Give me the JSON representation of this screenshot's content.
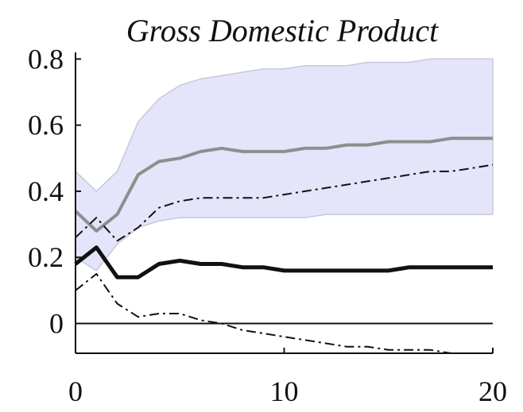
{
  "chart_data": {
    "type": "line",
    "title": "Gross Domestic Product",
    "xlabel": "",
    "ylabel": "",
    "xlim": [
      0,
      20
    ],
    "ylim": [
      -0.09,
      0.82
    ],
    "x_ticks": [
      0,
      10,
      20
    ],
    "x_tick_labels": [
      "0",
      "10",
      "20"
    ],
    "y_ticks": [
      0,
      0.2,
      0.4,
      0.6,
      0.8
    ],
    "y_tick_labels": [
      "0",
      "0.2",
      "0.4",
      "0.6",
      "0.8"
    ],
    "grid": false,
    "legend": "none",
    "x": [
      0,
      1,
      2,
      3,
      4,
      5,
      6,
      7,
      8,
      9,
      10,
      11,
      12,
      13,
      14,
      15,
      16,
      17,
      18,
      19,
      20
    ],
    "band": {
      "color": "#e4e4fa",
      "edge_color": "#c8c8dc",
      "lower": [
        0.2,
        0.16,
        0.24,
        0.29,
        0.31,
        0.32,
        0.32,
        0.32,
        0.32,
        0.32,
        0.32,
        0.32,
        0.33,
        0.33,
        0.33,
        0.33,
        0.33,
        0.33,
        0.33,
        0.33,
        0.33
      ],
      "upper": [
        0.46,
        0.4,
        0.46,
        0.61,
        0.68,
        0.72,
        0.74,
        0.75,
        0.76,
        0.77,
        0.77,
        0.78,
        0.78,
        0.78,
        0.79,
        0.79,
        0.79,
        0.8,
        0.8,
        0.8,
        0.8
      ]
    },
    "series": [
      {
        "style": "solid",
        "color": "#8e8e8e",
        "values": [
          0.34,
          0.28,
          0.33,
          0.45,
          0.49,
          0.5,
          0.52,
          0.53,
          0.52,
          0.52,
          0.52,
          0.53,
          0.53,
          0.54,
          0.54,
          0.55,
          0.55,
          0.55,
          0.56,
          0.56,
          0.56
        ]
      },
      {
        "style": "dashdot",
        "color": "#111111",
        "values": [
          0.26,
          0.32,
          0.25,
          0.29,
          0.35,
          0.37,
          0.38,
          0.38,
          0.38,
          0.38,
          0.39,
          0.4,
          0.41,
          0.42,
          0.43,
          0.44,
          0.45,
          0.46,
          0.46,
          0.47,
          0.48
        ]
      },
      {
        "style": "solid-thick",
        "color": "#111111",
        "values": [
          0.18,
          0.23,
          0.14,
          0.14,
          0.18,
          0.19,
          0.18,
          0.18,
          0.17,
          0.17,
          0.16,
          0.16,
          0.16,
          0.16,
          0.16,
          0.16,
          0.17,
          0.17,
          0.17,
          0.17,
          0.17
        ]
      },
      {
        "style": "dashdot",
        "color": "#111111",
        "values": [
          0.1,
          0.15,
          0.06,
          0.02,
          0.03,
          0.03,
          0.01,
          0.0,
          -0.02,
          -0.03,
          -0.04,
          -0.05,
          -0.06,
          -0.07,
          -0.07,
          -0.08,
          -0.08,
          -0.08,
          -0.09,
          -0.09,
          -0.09
        ]
      }
    ],
    "zero_line": {
      "y": 0,
      "color": "#111111"
    }
  }
}
